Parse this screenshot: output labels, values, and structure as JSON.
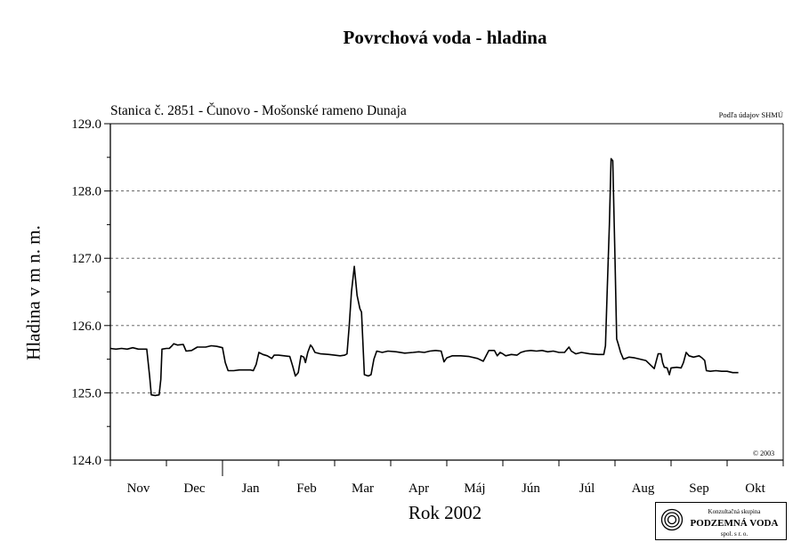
{
  "title": "Povrchová voda - hladina",
  "station_label": "Stanica č. 2851 - Čunovo - Mošonské rameno Dunaja",
  "source_note": "Podľa údajov SHMÚ",
  "copyright": "© 2003",
  "logo": {
    "line1": "Konzultačná skupina",
    "line2": "PODZEMNÁ VODA",
    "line3": "spol. s r. o."
  },
  "chart_data": {
    "type": "line",
    "title": "Povrchová voda - hladina",
    "xlabel": "Rok 2002",
    "ylabel": "Hladina v m n. m.",
    "ylim": [
      124.0,
      129.0
    ],
    "xlim": [
      0,
      12
    ],
    "x_unit": "months from 1 Nov 2001",
    "grid": "horizontal dashed at 125.0, 126.0, 127.0, 128.0",
    "y_ticks": [
      "124.0",
      "125.0",
      "126.0",
      "127.0",
      "128.0",
      "129.0"
    ],
    "months": [
      "Nov",
      "Dec",
      "Jan",
      "Feb",
      "Mar",
      "Apr",
      "Máj",
      "Jún",
      "Júl",
      "Aug",
      "Sep",
      "Okt"
    ],
    "series": [
      {
        "points": [
          [
            0.0,
            125.66
          ],
          [
            0.1,
            125.65
          ],
          [
            0.2,
            125.66
          ],
          [
            0.3,
            125.65
          ],
          [
            0.4,
            125.67
          ],
          [
            0.5,
            125.65
          ],
          [
            0.6,
            125.65
          ],
          [
            0.65,
            125.65
          ],
          [
            0.7,
            125.25
          ],
          [
            0.73,
            124.97
          ],
          [
            0.8,
            124.96
          ],
          [
            0.87,
            124.97
          ],
          [
            0.9,
            125.2
          ],
          [
            0.92,
            125.65
          ],
          [
            1.0,
            125.66
          ],
          [
            1.05,
            125.66
          ],
          [
            1.1,
            125.7
          ],
          [
            1.13,
            125.73
          ],
          [
            1.2,
            125.71
          ],
          [
            1.3,
            125.72
          ],
          [
            1.35,
            125.62
          ],
          [
            1.45,
            125.63
          ],
          [
            1.55,
            125.68
          ],
          [
            1.7,
            125.68
          ],
          [
            1.8,
            125.7
          ],
          [
            1.9,
            125.69
          ],
          [
            2.0,
            125.67
          ],
          [
            2.05,
            125.45
          ],
          [
            2.1,
            125.33
          ],
          [
            2.2,
            125.33
          ],
          [
            2.3,
            125.34
          ],
          [
            2.5,
            125.34
          ],
          [
            2.55,
            125.33
          ],
          [
            2.6,
            125.42
          ],
          [
            2.65,
            125.6
          ],
          [
            2.72,
            125.57
          ],
          [
            2.8,
            125.55
          ],
          [
            2.88,
            125.51
          ],
          [
            2.92,
            125.56
          ],
          [
            3.0,
            125.56
          ],
          [
            3.1,
            125.55
          ],
          [
            3.2,
            125.54
          ],
          [
            3.25,
            125.4
          ],
          [
            3.3,
            125.25
          ],
          [
            3.35,
            125.3
          ],
          [
            3.4,
            125.55
          ],
          [
            3.45,
            125.53
          ],
          [
            3.48,
            125.45
          ],
          [
            3.52,
            125.6
          ],
          [
            3.57,
            125.71
          ],
          [
            3.6,
            125.68
          ],
          [
            3.65,
            125.6
          ],
          [
            3.75,
            125.58
          ],
          [
            3.9,
            125.57
          ],
          [
            4.0,
            125.56
          ],
          [
            4.1,
            125.55
          ],
          [
            4.18,
            125.56
          ],
          [
            4.22,
            125.58
          ],
          [
            4.26,
            126.0
          ],
          [
            4.3,
            126.5
          ],
          [
            4.35,
            126.88
          ],
          [
            4.4,
            126.45
          ],
          [
            4.45,
            126.25
          ],
          [
            4.48,
            126.2
          ],
          [
            4.53,
            125.27
          ],
          [
            4.6,
            125.25
          ],
          [
            4.65,
            125.27
          ],
          [
            4.7,
            125.5
          ],
          [
            4.75,
            125.62
          ],
          [
            4.85,
            125.6
          ],
          [
            4.95,
            125.62
          ],
          [
            5.1,
            125.61
          ],
          [
            5.25,
            125.59
          ],
          [
            5.4,
            125.6
          ],
          [
            5.5,
            125.61
          ],
          [
            5.6,
            125.6
          ],
          [
            5.7,
            125.62
          ],
          [
            5.8,
            125.63
          ],
          [
            5.9,
            125.62
          ],
          [
            5.95,
            125.46
          ],
          [
            6.0,
            125.52
          ],
          [
            6.1,
            125.55
          ],
          [
            6.25,
            125.55
          ],
          [
            6.4,
            125.54
          ],
          [
            6.55,
            125.51
          ],
          [
            6.65,
            125.47
          ],
          [
            6.75,
            125.63
          ],
          [
            6.85,
            125.63
          ],
          [
            6.9,
            125.55
          ],
          [
            6.95,
            125.6
          ],
          [
            7.0,
            125.58
          ],
          [
            7.05,
            125.55
          ],
          [
            7.15,
            125.57
          ],
          [
            7.25,
            125.56
          ],
          [
            7.32,
            125.6
          ],
          [
            7.4,
            125.62
          ],
          [
            7.5,
            125.63
          ],
          [
            7.6,
            125.62
          ],
          [
            7.7,
            125.63
          ],
          [
            7.8,
            125.61
          ],
          [
            7.9,
            125.62
          ],
          [
            8.0,
            125.6
          ],
          [
            8.1,
            125.6
          ],
          [
            8.18,
            125.68
          ],
          [
            8.22,
            125.62
          ],
          [
            8.3,
            125.58
          ],
          [
            8.4,
            125.6
          ],
          [
            8.55,
            125.58
          ],
          [
            8.7,
            125.57
          ],
          [
            8.8,
            125.57
          ],
          [
            8.83,
            125.7
          ],
          [
            8.86,
            126.5
          ],
          [
            8.9,
            127.5
          ],
          [
            8.93,
            128.48
          ],
          [
            8.96,
            128.45
          ],
          [
            9.0,
            127.0
          ],
          [
            9.03,
            125.8
          ],
          [
            9.06,
            125.72
          ],
          [
            9.1,
            125.6
          ],
          [
            9.15,
            125.5
          ],
          [
            9.25,
            125.53
          ],
          [
            9.35,
            125.52
          ],
          [
            9.45,
            125.5
          ],
          [
            9.55,
            125.48
          ],
          [
            9.65,
            125.4
          ],
          [
            9.7,
            125.36
          ],
          [
            9.77,
            125.58
          ],
          [
            9.82,
            125.58
          ],
          [
            9.85,
            125.45
          ],
          [
            9.88,
            125.38
          ],
          [
            9.93,
            125.37
          ],
          [
            9.97,
            125.27
          ],
          [
            10.0,
            125.37
          ],
          [
            10.1,
            125.38
          ],
          [
            10.18,
            125.37
          ],
          [
            10.22,
            125.45
          ],
          [
            10.27,
            125.6
          ],
          [
            10.32,
            125.55
          ],
          [
            10.4,
            125.53
          ],
          [
            10.5,
            125.55
          ],
          [
            10.55,
            125.52
          ],
          [
            10.6,
            125.48
          ],
          [
            10.63,
            125.33
          ],
          [
            10.7,
            125.32
          ],
          [
            10.8,
            125.33
          ],
          [
            10.9,
            125.32
          ],
          [
            11.0,
            125.32
          ],
          [
            11.1,
            125.3
          ],
          [
            11.2,
            125.3
          ]
        ]
      }
    ]
  }
}
